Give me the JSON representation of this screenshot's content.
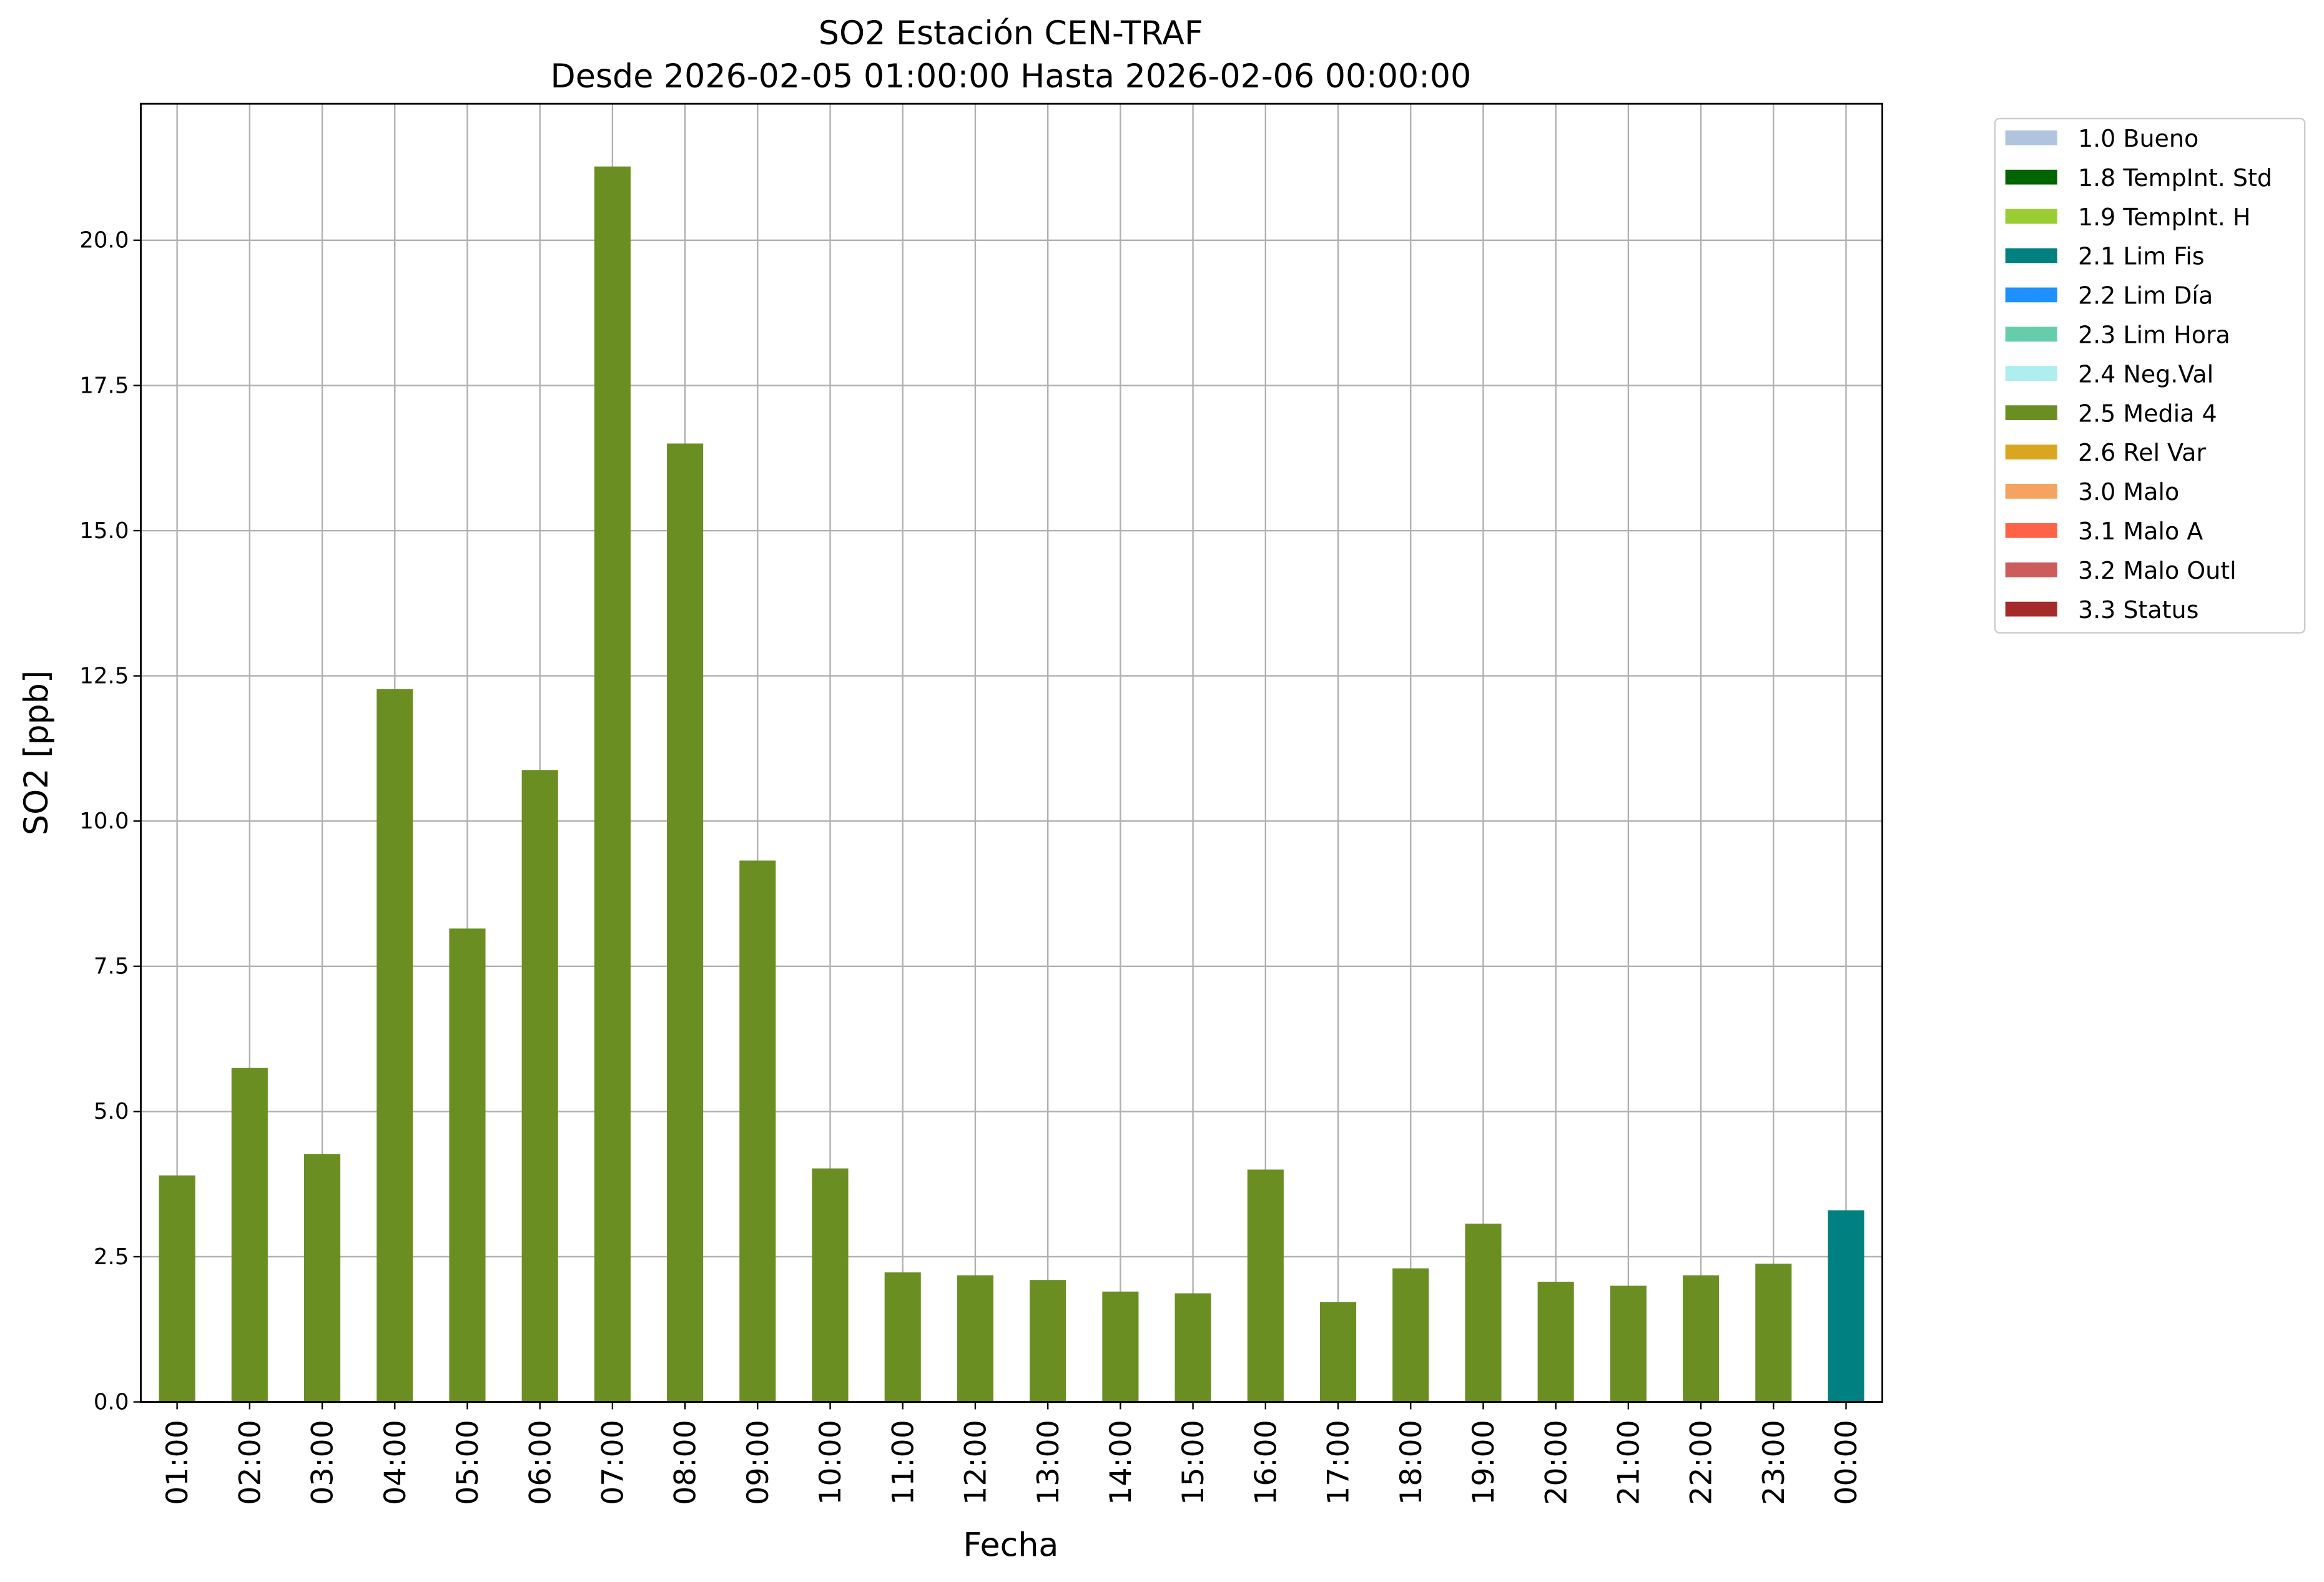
{
  "chart_data": {
    "type": "stacked_bar",
    "title": "SO2 Estación CEN-TRAF",
    "subtitle": "Desde 2026-02-05 01:00:00 Hasta 2026-02-06 00:00:00",
    "xlabel": "Fecha",
    "ylabel": "SO2 [ppb]",
    "categories": [
      "01:00",
      "02:00",
      "03:00",
      "04:00",
      "05:00",
      "06:00",
      "07:00",
      "08:00",
      "09:00",
      "10:00",
      "11:00",
      "12:00",
      "13:00",
      "14:00",
      "15:00",
      "16:00",
      "17:00",
      "18:00",
      "19:00",
      "20:00",
      "21:00",
      "22:00",
      "23:00",
      "00:00"
    ],
    "series": [
      {
        "name": "1.0 Bueno",
        "color": "#b0c4de",
        "values": [
          null,
          null,
          null,
          null,
          null,
          null,
          null,
          null,
          null,
          null,
          null,
          null,
          null,
          null,
          null,
          null,
          null,
          null,
          null,
          null,
          null,
          null,
          null,
          null
        ]
      },
      {
        "name": "1.8 TempInt. Std",
        "color": "#006400",
        "values": [
          null,
          null,
          null,
          null,
          null,
          null,
          null,
          null,
          null,
          null,
          null,
          null,
          null,
          null,
          null,
          null,
          null,
          null,
          null,
          null,
          null,
          null,
          null,
          null
        ]
      },
      {
        "name": "1.9 TempInt. H",
        "color": "#9acd32",
        "values": [
          null,
          null,
          null,
          null,
          null,
          null,
          null,
          null,
          null,
          null,
          null,
          null,
          null,
          null,
          null,
          null,
          null,
          null,
          null,
          null,
          null,
          null,
          null,
          null
        ]
      },
      {
        "name": "2.1 Lim Fis",
        "color": "#008080",
        "values": [
          null,
          null,
          null,
          null,
          null,
          null,
          null,
          null,
          null,
          null,
          null,
          null,
          null,
          null,
          null,
          null,
          null,
          null,
          null,
          null,
          null,
          null,
          null,
          3.3
        ]
      },
      {
        "name": "2.2 Lim Día",
        "color": "#1e90ff",
        "values": [
          null,
          null,
          null,
          null,
          null,
          null,
          null,
          null,
          null,
          null,
          null,
          null,
          null,
          null,
          null,
          null,
          null,
          null,
          null,
          null,
          null,
          null,
          null,
          null
        ]
      },
      {
        "name": "2.3 Lim Hora",
        "color": "#66cdaa",
        "values": [
          null,
          null,
          null,
          null,
          null,
          null,
          null,
          null,
          null,
          null,
          null,
          null,
          null,
          null,
          null,
          null,
          null,
          null,
          null,
          null,
          null,
          null,
          null,
          null
        ]
      },
      {
        "name": "2.4 Neg.Val",
        "color": "#afeeee",
        "values": [
          null,
          null,
          null,
          null,
          null,
          null,
          null,
          null,
          null,
          null,
          null,
          null,
          null,
          null,
          null,
          null,
          null,
          null,
          null,
          null,
          null,
          null,
          null,
          null
        ]
      },
      {
        "name": "2.5 Media 4",
        "color": "#6b8e23",
        "values": [
          3.9,
          5.75,
          4.27,
          12.27,
          8.15,
          10.88,
          21.27,
          16.5,
          9.32,
          4.02,
          2.23,
          2.18,
          2.1,
          1.9,
          1.87,
          4.0,
          1.72,
          2.3,
          3.07,
          2.07,
          2.0,
          2.18,
          2.38,
          null
        ]
      },
      {
        "name": "2.6 Rel Var",
        "color": "#daa520",
        "values": [
          null,
          null,
          null,
          null,
          null,
          null,
          null,
          null,
          null,
          null,
          null,
          null,
          null,
          null,
          null,
          null,
          null,
          null,
          null,
          null,
          null,
          null,
          null,
          null
        ]
      },
      {
        "name": "3.0 Malo",
        "color": "#f4a460",
        "values": [
          null,
          null,
          null,
          null,
          null,
          null,
          null,
          null,
          null,
          null,
          null,
          null,
          null,
          null,
          null,
          null,
          null,
          null,
          null,
          null,
          null,
          null,
          null,
          null
        ]
      },
      {
        "name": "3.1 Malo A",
        "color": "#ff6347",
        "values": [
          null,
          null,
          null,
          null,
          null,
          null,
          null,
          null,
          null,
          null,
          null,
          null,
          null,
          null,
          null,
          null,
          null,
          null,
          null,
          null,
          null,
          null,
          null,
          null
        ]
      },
      {
        "name": "3.2 Malo Outl",
        "color": "#cd5c5c",
        "values": [
          null,
          null,
          null,
          null,
          null,
          null,
          null,
          null,
          null,
          null,
          null,
          null,
          null,
          null,
          null,
          null,
          null,
          null,
          null,
          null,
          null,
          null,
          null,
          null
        ]
      },
      {
        "name": "3.3 Status",
        "color": "#a52a2a",
        "values": [
          null,
          null,
          null,
          null,
          null,
          null,
          null,
          null,
          null,
          null,
          null,
          null,
          null,
          null,
          null,
          null,
          null,
          null,
          null,
          null,
          null,
          null,
          null,
          null
        ]
      }
    ],
    "ylim": [
      0,
      22.35
    ],
    "yticks": [
      {
        "value": 0,
        "label": "0.0"
      },
      {
        "value": 2.5,
        "label": "2.5"
      },
      {
        "value": 5,
        "label": "5.0"
      },
      {
        "value": 7.5,
        "label": "7.5"
      },
      {
        "value": 10,
        "label": "10.0"
      },
      {
        "value": 12.5,
        "label": "12.5"
      },
      {
        "value": 15,
        "label": "15.0"
      },
      {
        "value": 17.5,
        "label": "17.5"
      },
      {
        "value": 20,
        "label": "20.0"
      }
    ],
    "grid": true,
    "legend": "outside-upper-right"
  }
}
